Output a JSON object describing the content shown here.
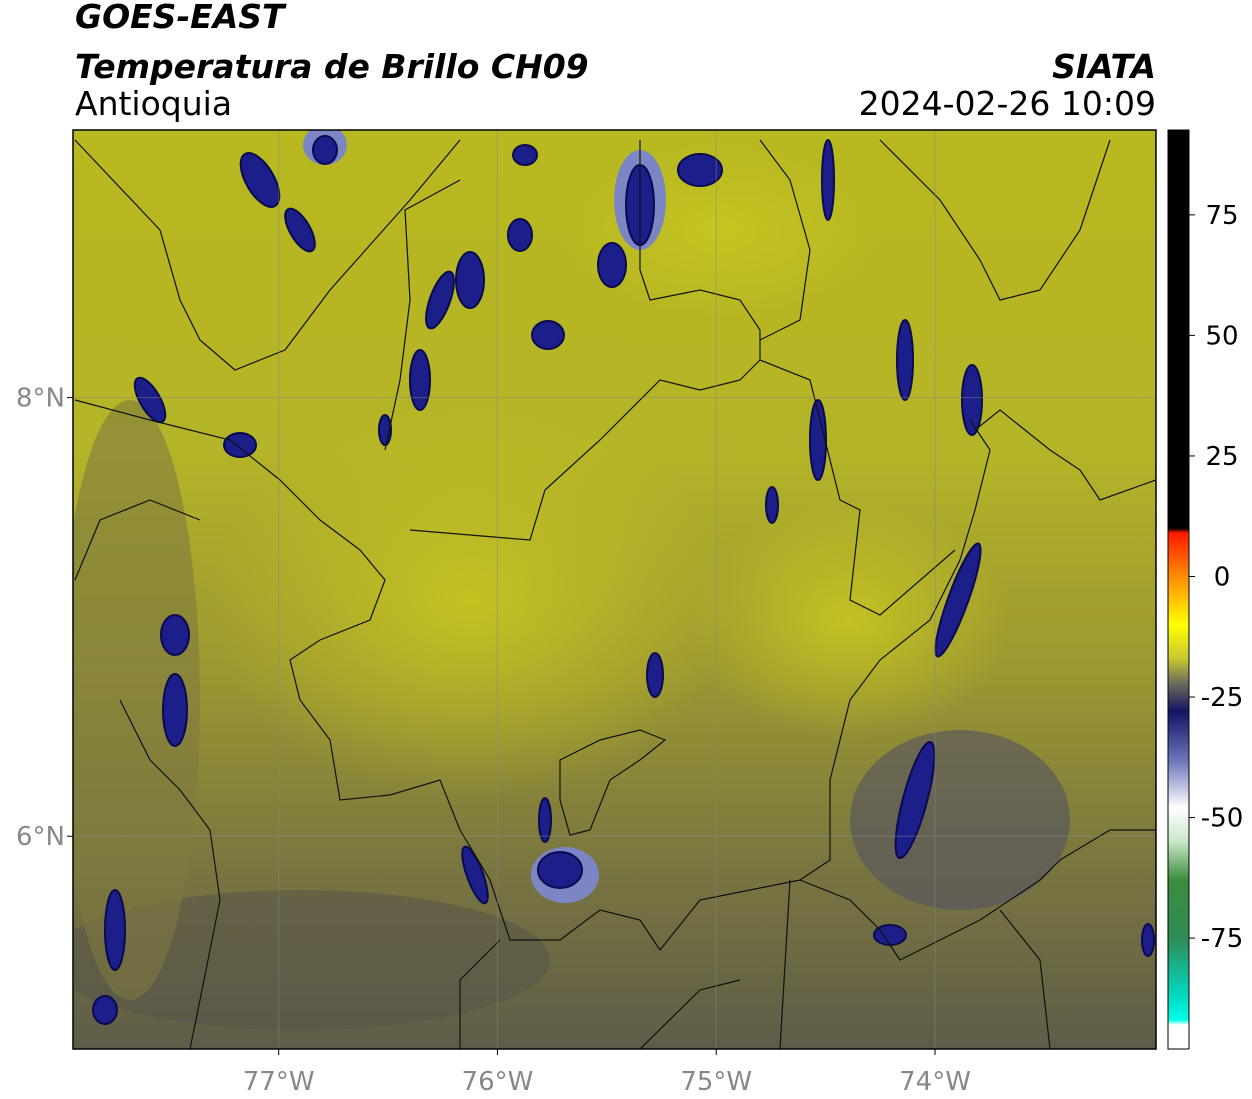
{
  "header": {
    "satellite": "GOES-EAST",
    "product": "Temperatura de Brillo CH09",
    "region": "Antioquia",
    "source": "SIATA",
    "datetime": "2024-02-26 10:09"
  },
  "map": {
    "lon_range": [
      -77.94,
      -72.99
    ],
    "lat_range": [
      5.03,
      9.22
    ],
    "lon_ticks": [
      {
        "value": -77,
        "label": "77°W"
      },
      {
        "value": -76,
        "label": "76°W"
      },
      {
        "value": -75,
        "label": "75°W"
      },
      {
        "value": -74,
        "label": "74°W"
      }
    ],
    "lat_ticks": [
      {
        "value": 8,
        "label": "8°N"
      },
      {
        "value": 6,
        "label": "6°N"
      }
    ]
  },
  "colorbar": {
    "range": [
      -98,
      92.6
    ],
    "ticks": [
      75,
      50,
      25,
      0,
      -25,
      -50,
      -75
    ],
    "colors": [
      {
        "value": 92.6,
        "color": "#000000"
      },
      {
        "value": 10,
        "color": "#000000"
      },
      {
        "value": 9,
        "color": "#ff1a00"
      },
      {
        "value": 0,
        "color": "#ff8c00"
      },
      {
        "value": -10,
        "color": "#ffff00"
      },
      {
        "value": -17,
        "color": "#c8c832"
      },
      {
        "value": -22,
        "color": "#6e6e5a"
      },
      {
        "value": -28,
        "color": "#141464"
      },
      {
        "value": -38,
        "color": "#6a74b8"
      },
      {
        "value": -48,
        "color": "#ffffff"
      },
      {
        "value": -55,
        "color": "#c8e6c8"
      },
      {
        "value": -63,
        "color": "#3c8c3c"
      },
      {
        "value": -75,
        "color": "#2e8b57"
      },
      {
        "value": -88,
        "color": "#00e0c8"
      },
      {
        "value": -92,
        "color": "#00ffe6"
      },
      {
        "value": -93,
        "color": "#ffffff"
      },
      {
        "value": -98,
        "color": "#ffffff"
      }
    ]
  }
}
